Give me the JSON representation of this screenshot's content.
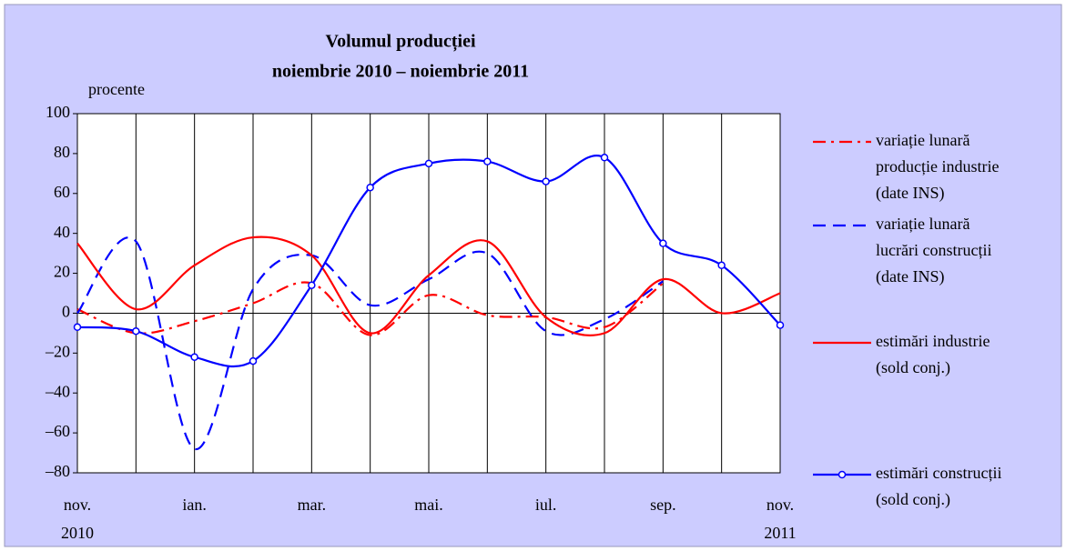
{
  "chart_data": {
    "type": "line",
    "title": [
      "Volumul producției",
      "noiembrie 2010 – noiembrie 2011"
    ],
    "y_axis_label": "procente",
    "categories": [
      "nov.",
      null,
      "ian.",
      null,
      "mar.",
      null,
      "mai.",
      null,
      "iul.",
      null,
      "sep.",
      null,
      "nov."
    ],
    "category_years": [
      "2010",
      null,
      null,
      null,
      null,
      null,
      null,
      null,
      null,
      null,
      null,
      null,
      "2011"
    ],
    "ylim": [
      -80,
      100
    ],
    "yticks": [
      {
        "value": -80,
        "label": "–80"
      },
      {
        "value": -60,
        "label": "–60"
      },
      {
        "value": -40,
        "label": "–40"
      },
      {
        "value": -20,
        "label": "–20"
      },
      0,
      20,
      40,
      60,
      80,
      100
    ],
    "series": [
      {
        "name": [
          "variație lunară",
          "producție industrie",
          "(date INS)"
        ],
        "color": "#ff0000",
        "dash": "dashdot",
        "markers": false,
        "values": [
          2,
          -10,
          -4,
          5,
          15,
          -11,
          9,
          -1,
          -2,
          -7,
          15,
          null,
          null
        ]
      },
      {
        "name": [
          "variație lunară",
          "lucrări construcții",
          "(date INS)"
        ],
        "color": "#0000ff",
        "dash": "dashed",
        "markers": false,
        "values": [
          0,
          36,
          -68,
          12,
          29,
          4,
          17,
          30,
          -9,
          -3,
          16,
          null,
          null
        ]
      },
      {
        "name": [
          "estimări industrie",
          "(sold conj.)"
        ],
        "color": "#ff0000",
        "dash": "solid",
        "markers": false,
        "values": [
          35,
          2,
          24,
          38,
          29,
          -10,
          19,
          36,
          -2,
          -10,
          17,
          0,
          10
        ]
      },
      {
        "name": [
          "estimări construcții",
          "(sold conj.)"
        ],
        "color": "#0000ff",
        "dash": "solid",
        "markers": true,
        "values": [
          -7,
          -9,
          -22,
          -24,
          14,
          63,
          75,
          76,
          66,
          78,
          35,
          24,
          -6
        ]
      }
    ]
  }
}
